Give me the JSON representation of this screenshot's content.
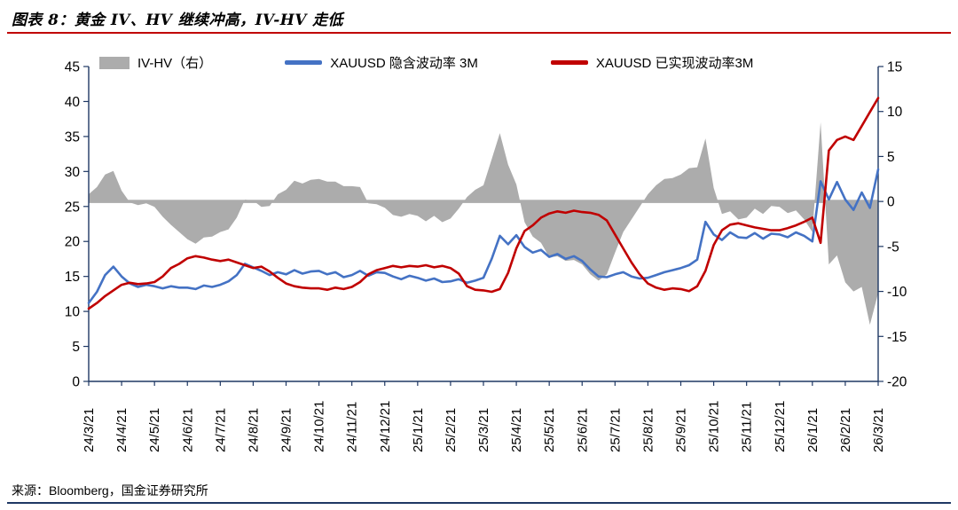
{
  "header": {
    "title": "图表 8：黄金 IV、HV 继续冲高，IV-HV 走低"
  },
  "footer": {
    "source": "来源：Bloomberg，国金证券研究所"
  },
  "colors": {
    "title_rule": "#C00000",
    "bottom_rule": "#1F3864",
    "axis": "#1F3864",
    "implied_blue": "#4472C4",
    "realized_red": "#C00000",
    "area_gray": "#ACACAC",
    "text": "#000000"
  },
  "chart_data": {
    "type": "line+area",
    "title": "黄金 IV、HV 继续冲高，IV-HV 走低",
    "legend": [
      {
        "label": "IV-HV（右）",
        "type": "area",
        "color": "#ACACAC"
      },
      {
        "label": "XAUUSD 隐含波动率 3M",
        "type": "line",
        "color": "#4472C4"
      },
      {
        "label": "XAUUSD 已实现波动率3M",
        "type": "line",
        "color": "#C00000"
      }
    ],
    "left_axis": {
      "min": 0,
      "max": 45,
      "step": 5,
      "ticks": [
        0,
        5,
        10,
        15,
        20,
        25,
        30,
        35,
        40,
        45
      ]
    },
    "right_axis": {
      "min": -20,
      "max": 15,
      "step": 5,
      "ticks": [
        -20,
        -15,
        -10,
        -5,
        0,
        5,
        10,
        15
      ]
    },
    "x_labels": [
      "24/3/21",
      "24/4/21",
      "24/5/21",
      "24/6/21",
      "24/7/21",
      "24/8/21",
      "24/9/21",
      "24/10/21",
      "24/11/21",
      "24/12/21",
      "25/1/21",
      "25/2/21",
      "25/3/21",
      "25/4/21",
      "25/5/21",
      "25/6/21",
      "25/7/21",
      "25/8/21",
      "25/9/21",
      "25/10/21",
      "25/11/21",
      "25/12/21",
      "26/1/21",
      "26/2/21",
      "26/3/21"
    ],
    "points_per_label_interval": 4,
    "series": [
      {
        "name": "XAUUSD 隐含波动率 3M",
        "axis": "left",
        "color": "#4472C4",
        "values": [
          11.2,
          12.8,
          15.2,
          16.4,
          15.0,
          14.0,
          13.5,
          13.8,
          13.6,
          13.3,
          13.6,
          13.4,
          13.4,
          13.2,
          13.7,
          13.5,
          13.8,
          14.3,
          15.2,
          16.8,
          16.3,
          15.8,
          15.2,
          15.6,
          15.3,
          15.9,
          15.4,
          15.7,
          15.8,
          15.3,
          15.6,
          14.9,
          15.2,
          15.8,
          15.1,
          15.6,
          15.5,
          15.0,
          14.6,
          15.1,
          14.8,
          14.4,
          14.7,
          14.2,
          14.3,
          14.6,
          14.1,
          14.4,
          14.8,
          17.5,
          20.8,
          19.6,
          20.9,
          19.2,
          18.4,
          18.8,
          17.8,
          18.2,
          17.5,
          17.9,
          17.2,
          16.0,
          15.0,
          14.9,
          15.3,
          15.6,
          15.0,
          14.7,
          14.8,
          15.2,
          15.6,
          15.9,
          16.2,
          16.6,
          17.4,
          22.8,
          21.0,
          20.2,
          21.3,
          20.6,
          20.5,
          21.2,
          20.4,
          21.1,
          21.0,
          20.6,
          21.3,
          20.8,
          20.0,
          28.6,
          26.0,
          28.5,
          26.0,
          24.5,
          27.0,
          24.8,
          30.3
        ]
      },
      {
        "name": "XAUUSD 已实现波动率3M",
        "axis": "left",
        "color": "#C00000",
        "values": [
          10.4,
          11.2,
          12.2,
          13.0,
          13.8,
          14.1,
          13.9,
          14.0,
          14.2,
          15.0,
          16.2,
          16.8,
          17.6,
          17.9,
          17.7,
          17.4,
          17.2,
          17.4,
          17.0,
          16.6,
          16.2,
          16.4,
          15.7,
          14.8,
          14.0,
          13.6,
          13.4,
          13.3,
          13.3,
          13.1,
          13.4,
          13.2,
          13.5,
          14.2,
          15.3,
          15.9,
          16.2,
          16.5,
          16.3,
          16.5,
          16.4,
          16.6,
          16.3,
          16.5,
          16.2,
          15.4,
          13.6,
          13.1,
          13.0,
          12.8,
          13.2,
          15.5,
          19.0,
          21.5,
          22.3,
          23.4,
          24.0,
          24.3,
          24.1,
          24.4,
          24.2,
          24.1,
          23.8,
          23.0,
          21.0,
          19.0,
          17.0,
          15.3,
          14.0,
          13.4,
          13.1,
          13.3,
          13.2,
          12.9,
          13.6,
          15.8,
          19.5,
          21.6,
          22.4,
          22.6,
          22.3,
          22.0,
          21.8,
          21.6,
          21.6,
          21.9,
          22.3,
          22.8,
          23.4,
          19.8,
          33.0,
          34.5,
          35.0,
          34.5,
          36.5,
          38.5,
          40.5
        ]
      },
      {
        "name": "IV-HV（右）",
        "axis": "right",
        "color": "#ACACAC",
        "derived": "implied_minus_realized"
      }
    ]
  }
}
